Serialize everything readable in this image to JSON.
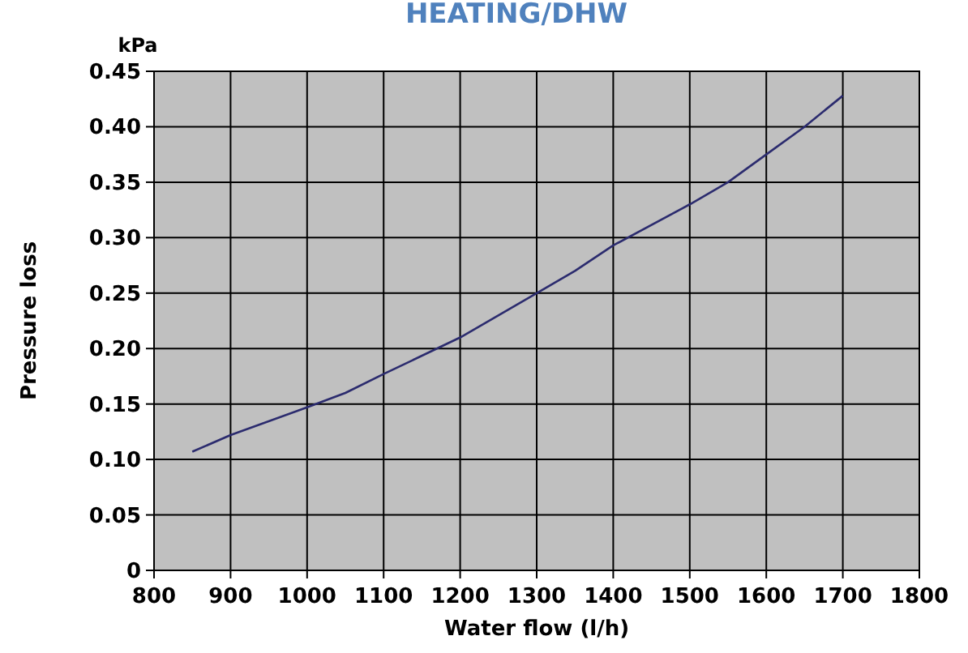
{
  "chart_data": {
    "type": "line",
    "title": "HEATING/DHW",
    "xlabel": "Water flow (l/h)",
    "ylabel": "Pressure loss",
    "annotations": [
      "kPa"
    ],
    "x": [
      850,
      900,
      1000,
      1050,
      1100,
      1200,
      1300,
      1350,
      1400,
      1500,
      1550,
      1600,
      1650,
      1700
    ],
    "series": [
      {
        "color": "#2b2b6e",
        "values": [
          0.107,
          0.122,
          0.147,
          0.16,
          0.177,
          0.21,
          0.25,
          0.27,
          0.293,
          0.33,
          0.35,
          0.375,
          0.4,
          0.428
        ]
      }
    ],
    "xlim": [
      800,
      1800
    ],
    "xticks": [
      800,
      900,
      1000,
      1100,
      1200,
      1300,
      1400,
      1500,
      1600,
      1700,
      1800
    ],
    "ylim": [
      0,
      0.45
    ],
    "yticks": [
      0,
      {
        "value": 0.05,
        "label": "0.05"
      },
      {
        "value": 0.1,
        "label": "0.10"
      },
      {
        "value": 0.15,
        "label": "0.15"
      },
      {
        "value": 0.2,
        "label": "0.20"
      },
      {
        "value": 0.25,
        "label": "0.25"
      },
      {
        "value": 0.3,
        "label": "0.30"
      },
      {
        "value": 0.35,
        "label": "0.35"
      },
      {
        "value": 0.4,
        "label": "0.40"
      },
      {
        "value": 0.45,
        "label": "0.45"
      }
    ],
    "grid": true,
    "marker": "none",
    "line_style": "solid"
  }
}
